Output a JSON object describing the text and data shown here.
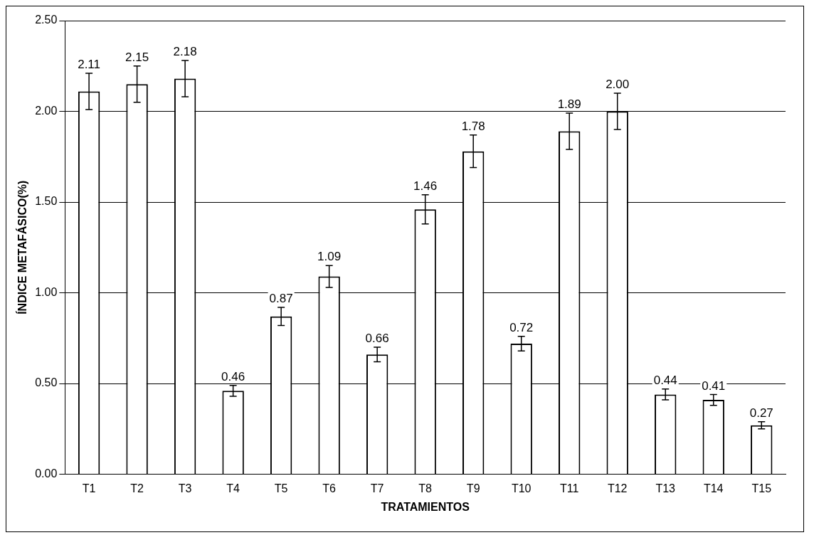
{
  "chart_data": {
    "type": "bar",
    "xlabel": "TRATAMIENTOS",
    "ylabel": "ÍNDICE METAFÁSICO(%)",
    "categories": [
      "T1",
      "T2",
      "T3",
      "T4",
      "T5",
      "T6",
      "T7",
      "T8",
      "T9",
      "T10",
      "T11",
      "T12",
      "T13",
      "T14",
      "T15"
    ],
    "values": [
      2.11,
      2.15,
      2.18,
      0.46,
      0.87,
      1.09,
      0.66,
      1.46,
      1.78,
      0.72,
      1.89,
      2.0,
      0.44,
      0.41,
      0.27
    ],
    "errors": [
      0.1,
      0.1,
      0.1,
      0.03,
      0.05,
      0.06,
      0.04,
      0.08,
      0.09,
      0.04,
      0.1,
      0.1,
      0.03,
      0.03,
      0.02
    ],
    "value_labels": [
      "2.11",
      "2.15",
      "2.18",
      "0.46",
      "0.87",
      "1.09",
      "0.66",
      "1.46",
      "1.78",
      "0.72",
      "1.89",
      "2.00",
      "0.44",
      "0.41",
      "0.27"
    ],
    "color": "#ffffff",
    "ylim": [
      0,
      2.5
    ],
    "yticks": [
      {
        "value": 0,
        "label": "0.00"
      },
      {
        "value": 0.5,
        "label": "0.50"
      },
      {
        "value": 1,
        "label": "1.00"
      },
      {
        "value": 1.5,
        "label": "1.50"
      },
      {
        "value": 2,
        "label": "2.00"
      },
      {
        "value": 2.5,
        "label": "2.50"
      }
    ],
    "grid": "y",
    "legend": false
  }
}
